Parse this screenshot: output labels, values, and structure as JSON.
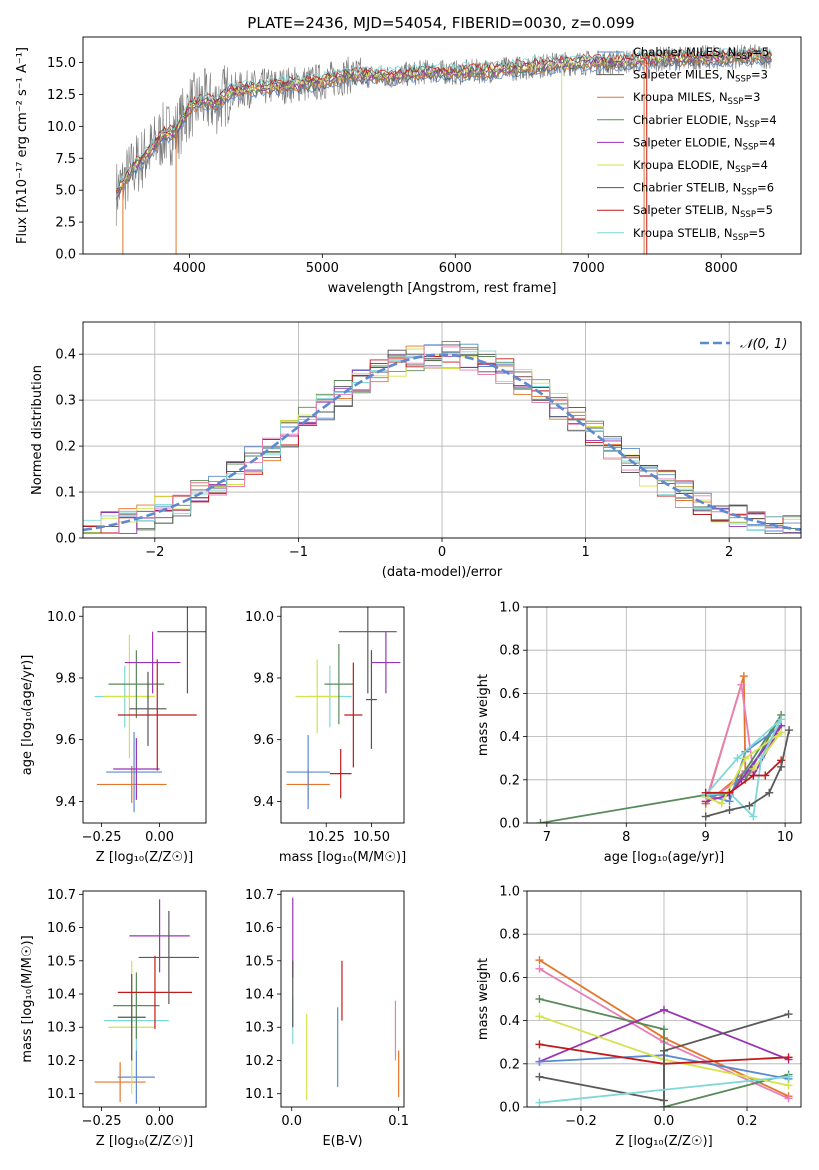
{
  "figure_title": "PLATE=2436, MJD=54054, FIBERID=0030, z=0.099",
  "model_colors": {
    "Chabrier MILES": "#5b8ad1",
    "Salpeter MILES": "#5a5a5a",
    "Kroupa MILES": "#e3762c",
    "Chabrier ELODIE": "#5a8a5a",
    "Salpeter ELODIE": "#9a33b3",
    "Kroupa ELODIE": "#d4e34d",
    "Chabrier STELIB": "#555555",
    "Salpeter STELIB": "#c21a1a",
    "Kroupa STELIB": "#7fd8d8",
    "pink": "#e87fb7",
    "normal_curve": "#5b8ad1",
    "spectrum_grey": "#777777"
  },
  "chart_data": [
    {
      "id": "spectrum",
      "type": "line",
      "title": "PLATE=2436, MJD=54054, FIBERID=0030, z=0.099",
      "xlabel": "wavelength [Angstrom, rest frame]",
      "ylabel": "Flux [fλ10⁻¹⁷ erg cm⁻² s⁻¹ A⁻¹]",
      "xlim": [
        3200,
        8600
      ],
      "ylim": [
        0,
        17
      ],
      "xticks": [
        4000,
        5000,
        6000,
        7000,
        8000
      ],
      "yticks": [
        0.0,
        2.5,
        5.0,
        7.5,
        10.0,
        12.5,
        15.0
      ],
      "grid": false,
      "legend_position": "top-right",
      "legend": [
        {
          "label": "Chabrier MILES, N",
          "sub": "SSP",
          "suffix": "=5"
        },
        {
          "label": "Salpeter MILES, N",
          "sub": "SSP",
          "suffix": "=3"
        },
        {
          "label": "Kroupa MILES, N",
          "sub": "SSP",
          "suffix": "=3"
        },
        {
          "label": "Chabrier ELODIE, N",
          "sub": "SSP",
          "suffix": "=4"
        },
        {
          "label": "Salpeter ELODIE, N",
          "sub": "SSP",
          "suffix": "=4"
        },
        {
          "label": "Kroupa ELODIE, N",
          "sub": "SSP",
          "suffix": "=4"
        },
        {
          "label": "Chabrier STELIB, N",
          "sub": "SSP",
          "suffix": "=6"
        },
        {
          "label": "Salpeter STELIB, N",
          "sub": "SSP",
          "suffix": "=5"
        },
        {
          "label": "Kroupa STELIB, N",
          "sub": "SSP",
          "suffix": "=5"
        }
      ],
      "continuum": {
        "x": [
          3450,
          3600,
          3700,
          3800,
          3900,
          4000,
          4100,
          4200,
          4300,
          4500,
          4700,
          5000,
          5200,
          5500,
          5800,
          6000,
          6300,
          6600,
          6800,
          7000,
          7200,
          7400,
          7600,
          8000,
          8400
        ],
        "y": [
          4.8,
          7.0,
          8.0,
          9.3,
          9.6,
          11.5,
          12.0,
          11.8,
          12.7,
          13.0,
          13.2,
          13.5,
          14.0,
          13.9,
          14.3,
          14.2,
          14.4,
          14.7,
          14.9,
          15.0,
          15.0,
          15.2,
          15.3,
          15.4,
          15.5
        ]
      }
    },
    {
      "id": "residual_histogram",
      "type": "histogram",
      "xlabel": "(data-model)/error",
      "ylabel": "Normed distribution",
      "xlim": [
        -2.5,
        2.5
      ],
      "ylim": [
        0,
        0.47
      ],
      "xticks": [
        -2,
        -1,
        0,
        1,
        2
      ],
      "yticks": [
        0.0,
        0.1,
        0.2,
        0.3,
        0.4
      ],
      "grid": true,
      "bins": 40,
      "reference_curve": {
        "label": "𝒩(0, 1)",
        "mean": 0,
        "sigma": 1
      },
      "legend_position": "top-right"
    },
    {
      "id": "age_vs_metallicity",
      "type": "errorbar",
      "xlabel": "Z [log₁₀(Z/Z☉)]",
      "ylabel": "age  [log₁₀(age/yr)]",
      "xlim": [
        -0.33,
        0.2
      ],
      "ylim": [
        9.33,
        10.03
      ],
      "xticks": [
        -0.25,
        0.0
      ],
      "yticks": [
        9.4,
        9.6,
        9.8,
        10.0
      ],
      "points": [
        {
          "model": "Kroupa MILES",
          "x": -0.12,
          "xerr": 0.15,
          "y": 9.455,
          "yerr": 0.06
        },
        {
          "model": "Chabrier MILES",
          "x": -0.11,
          "xerr": 0.12,
          "y": 9.495,
          "yerr": 0.13
        },
        {
          "model": "Salpeter ELODIE",
          "x": -0.1,
          "xerr": 0.1,
          "y": 9.505,
          "yerr": 0.1
        },
        {
          "model": "Kroupa STELIB",
          "x": -0.15,
          "xerr": 0.13,
          "y": 9.74,
          "yerr": 0.1
        },
        {
          "model": "Kroupa ELODIE",
          "x": -0.13,
          "xerr": 0.11,
          "y": 9.74,
          "yerr": 0.2
        },
        {
          "model": "Chabrier ELODIE",
          "x": -0.1,
          "xerr": 0.12,
          "y": 9.78,
          "yerr": 0.11
        },
        {
          "model": "Chabrier STELIB",
          "x": -0.05,
          "xerr": 0.08,
          "y": 9.7,
          "yerr": 0.12
        },
        {
          "model": "Salpeter STELIB",
          "x": -0.01,
          "xerr": 0.17,
          "y": 9.68,
          "yerr": 0.18
        },
        {
          "model": "Salpeter ELODIE",
          "x": -0.03,
          "xerr": 0.12,
          "y": 9.85,
          "yerr": 0.1
        },
        {
          "model": "Salpeter MILES",
          "x": 0.12,
          "xerr": 0.13,
          "y": 9.95,
          "yerr": 0.2
        }
      ]
    },
    {
      "id": "age_vs_mass",
      "type": "errorbar",
      "xlabel": "mass [log₁₀(M/M☉)]",
      "ylabel": "",
      "xlim": [
        10.0,
        10.68
      ],
      "ylim": [
        9.33,
        10.03
      ],
      "xticks": [
        10.25,
        10.5
      ],
      "yticks": [
        9.4,
        9.6,
        9.8,
        10.0
      ],
      "points": [
        {
          "model": "Kroupa MILES",
          "x": 10.15,
          "xerr": 0.12,
          "y": 9.455,
          "yerr": 0.05
        },
        {
          "model": "Chabrier MILES",
          "x": 10.15,
          "xerr": 0.12,
          "y": 9.495,
          "yerr": 0.12
        },
        {
          "model": "Salpeter STELIB",
          "x": 10.33,
          "xerr": 0.06,
          "y": 9.49,
          "yerr": 0.08
        },
        {
          "model": "Kroupa STELIB",
          "x": 10.27,
          "xerr": 0.12,
          "y": 9.74,
          "yerr": 0.1
        },
        {
          "model": "Kroupa ELODIE",
          "x": 10.2,
          "xerr": 0.12,
          "y": 9.74,
          "yerr": 0.12
        },
        {
          "model": "Chabrier ELODIE",
          "x": 10.32,
          "xerr": 0.08,
          "y": 9.78,
          "yerr": 0.13
        },
        {
          "model": "Salpeter STELIB",
          "x": 10.4,
          "xerr": 0.05,
          "y": 9.68,
          "yerr": 0.17
        },
        {
          "model": "Chabrier STELIB",
          "x": 10.5,
          "xerr": 0.03,
          "y": 9.73,
          "yerr": 0.16
        },
        {
          "model": "Salpeter ELODIE",
          "x": 10.58,
          "xerr": 0.08,
          "y": 9.85,
          "yerr": 0.1
        },
        {
          "model": "Salpeter MILES",
          "x": 10.48,
          "xerr": 0.16,
          "y": 9.95,
          "yerr": 0.2
        }
      ]
    },
    {
      "id": "mass_weight_vs_age",
      "type": "line",
      "xlabel": "age  [log₁₀(age/yr)]",
      "ylabel": "mass weight",
      "xlim": [
        6.75,
        10.2
      ],
      "ylim": [
        0,
        1
      ],
      "xticks": [
        7,
        8,
        9,
        10
      ],
      "yticks": [
        0.0,
        0.2,
        0.4,
        0.6,
        0.8,
        1.0
      ],
      "grid": true,
      "series": [
        {
          "model": "Kroupa MILES",
          "x": [
            9.0,
            9.48,
            9.5,
            9.5,
            9.0
          ],
          "y": [
            0.09,
            0.68,
            0.23,
            0.24,
            0.09
          ]
        },
        {
          "model": "pink",
          "x": [
            9.0,
            9.45,
            9.6,
            9.0
          ],
          "y": [
            0.1,
            0.64,
            0.24,
            0.1
          ]
        },
        {
          "model": "Chabrier ELODIE",
          "x": [
            6.92,
            9.0,
            9.3,
            9.95,
            9.5
          ],
          "y": [
            0.0,
            0.13,
            0.13,
            0.5,
            0.2
          ]
        },
        {
          "model": "Chabrier MILES",
          "x": [
            9.0,
            9.3,
            9.5,
            9.95,
            9.5
          ],
          "y": [
            0.13,
            0.1,
            0.33,
            0.45,
            0.23
          ]
        },
        {
          "model": "Salpeter ELODIE",
          "x": [
            9.0,
            9.3,
            9.45,
            9.95,
            9.6
          ],
          "y": [
            0.1,
            0.13,
            0.2,
            0.45,
            0.22
          ]
        },
        {
          "model": "Kroupa ELODIE",
          "x": [
            9.0,
            9.2,
            9.5,
            9.95,
            9.6
          ],
          "y": [
            0.12,
            0.09,
            0.3,
            0.42,
            0.25
          ]
        },
        {
          "model": "Kroupa STELIB",
          "x": [
            9.0,
            9.3,
            9.6,
            9.7,
            9.95,
            9.4,
            9.0
          ],
          "y": [
            0.13,
            0.14,
            0.03,
            0.3,
            0.48,
            0.3,
            0.13
          ]
        },
        {
          "model": "Salpeter STELIB",
          "x": [
            9.0,
            9.3,
            9.6,
            9.75,
            9.95
          ],
          "y": [
            0.14,
            0.14,
            0.22,
            0.22,
            0.29
          ]
        },
        {
          "model": "Salpeter MILES",
          "x": [
            9.0,
            9.3,
            9.55,
            9.8,
            9.95,
            10.05
          ],
          "y": [
            0.03,
            0.06,
            0.08,
            0.14,
            0.26,
            0.43
          ]
        }
      ]
    },
    {
      "id": "mass_vs_metallicity",
      "type": "errorbar",
      "xlabel": "Z [log₁₀(Z/Z☉)]",
      "ylabel": "mass [log₁₀(M/M☉)]",
      "xlim": [
        -0.33,
        0.2
      ],
      "ylim": [
        10.06,
        10.71
      ],
      "xticks": [
        -0.25,
        0.0
      ],
      "yticks": [
        10.1,
        10.2,
        10.3,
        10.4,
        10.5,
        10.6,
        10.7
      ],
      "points": [
        {
          "model": "Kroupa MILES",
          "x": -0.17,
          "xerr": 0.11,
          "y": 10.135,
          "yerr": 0.06
        },
        {
          "model": "Chabrier MILES",
          "x": -0.1,
          "xerr": 0.08,
          "y": 10.15,
          "yerr": 0.08
        },
        {
          "model": "Kroupa STELIB",
          "x": -0.1,
          "xerr": 0.14,
          "y": 10.32,
          "yerr": 0.09
        },
        {
          "model": "Kroupa ELODIE",
          "x": -0.12,
          "xerr": 0.1,
          "y": 10.3,
          "yerr": 0.2
        },
        {
          "model": "Chabrier ELODIE",
          "x": -0.1,
          "xerr": 0.1,
          "y": 10.365,
          "yerr": 0.1
        },
        {
          "model": "Chabrier STELIB",
          "x": -0.12,
          "xerr": 0.06,
          "y": 10.33,
          "yerr": 0.13
        },
        {
          "model": "Salpeter STELIB",
          "x": -0.02,
          "xerr": 0.16,
          "y": 10.405,
          "yerr": 0.11
        },
        {
          "model": "Salpeter ELODIE",
          "x": 0.0,
          "xerr": 0.13,
          "y": 10.575,
          "yerr": 0.11
        },
        {
          "model": "Salpeter MILES",
          "x": 0.04,
          "xerr": 0.13,
          "y": 10.51,
          "yerr": 0.14
        }
      ]
    },
    {
      "id": "mass_vs_extinction",
      "type": "errorbar",
      "xlabel": "E(B-V)",
      "ylabel": "",
      "xlim": [
        -0.01,
        0.105
      ],
      "ylim": [
        10.06,
        10.71
      ],
      "xticks": [
        0.0,
        0.1
      ],
      "yticks": [
        10.1,
        10.2,
        10.3,
        10.4,
        10.5,
        10.6,
        10.7
      ],
      "points": [
        {
          "model": "Salpeter ELODIE",
          "x": 0.001,
          "xerr": 0.0,
          "y": 10.57,
          "yerr": 0.12
        },
        {
          "model": "Kroupa STELIB",
          "x": 0.001,
          "xerr": 0.0,
          "y": 10.32,
          "yerr": 0.07
        },
        {
          "model": "Chabrier STELIB",
          "x": 0.001,
          "xerr": 0.0,
          "y": 10.4,
          "yerr": 0.1
        },
        {
          "model": "Kroupa ELODIE",
          "x": 0.014,
          "xerr": 0.0,
          "y": 10.21,
          "yerr": 0.13
        },
        {
          "model": "Chabrier MILES",
          "x": 0.043,
          "xerr": 0.0,
          "y": 10.24,
          "yerr": 0.12
        },
        {
          "model": "Salpeter STELIB",
          "x": 0.047,
          "xerr": 0.0,
          "y": 10.41,
          "yerr": 0.09
        },
        {
          "model": "pink",
          "x": 0.097,
          "xerr": 0.0,
          "y": 10.29,
          "yerr": 0.09
        },
        {
          "model": "Kroupa MILES",
          "x": 0.1,
          "xerr": 0.0,
          "y": 10.16,
          "yerr": 0.07
        }
      ]
    },
    {
      "id": "mass_weight_vs_metallicity",
      "type": "line",
      "xlabel": "Z [log₁₀(Z/Z☉)]",
      "ylabel": "mass weight",
      "xlim": [
        -0.33,
        0.33
      ],
      "ylim": [
        0,
        1
      ],
      "xticks": [
        -0.2,
        0.0,
        0.2
      ],
      "yticks": [
        0.0,
        0.2,
        0.4,
        0.6,
        0.8,
        1.0
      ],
      "grid": true,
      "series": [
        {
          "model": "Kroupa MILES",
          "x": [
            -0.3,
            0.0,
            0.3
          ],
          "y": [
            0.68,
            0.32,
            0.05
          ]
        },
        {
          "model": "pink",
          "x": [
            -0.3,
            0.0,
            0.3
          ],
          "y": [
            0.64,
            0.3,
            0.04
          ]
        },
        {
          "model": "Chabrier ELODIE",
          "x": [
            -0.3,
            0.0,
            0.0,
            0.3
          ],
          "y": [
            0.5,
            0.36,
            0.0,
            0.15
          ]
        },
        {
          "model": "Salpeter ELODIE",
          "x": [
            -0.3,
            0.0,
            0.3
          ],
          "y": [
            0.21,
            0.45,
            0.22
          ]
        },
        {
          "model": "Chabrier MILES",
          "x": [
            -0.3,
            0.0,
            0.3
          ],
          "y": [
            0.21,
            0.24,
            0.13
          ]
        },
        {
          "model": "Kroupa ELODIE",
          "x": [
            -0.3,
            0.0,
            0.3
          ],
          "y": [
            0.42,
            0.22,
            0.1
          ]
        },
        {
          "model": "Salpeter STELIB",
          "x": [
            -0.3,
            0.0,
            0.3
          ],
          "y": [
            0.29,
            0.2,
            0.23
          ]
        },
        {
          "model": "Salpeter MILES",
          "x": [
            -0.3,
            0.0,
            0.0,
            0.3
          ],
          "y": [
            0.14,
            0.03,
            0.26,
            0.43
          ]
        },
        {
          "model": "Kroupa STELIB",
          "x": [
            -0.3,
            0.3
          ],
          "y": [
            0.02,
            0.14
          ]
        }
      ]
    }
  ]
}
